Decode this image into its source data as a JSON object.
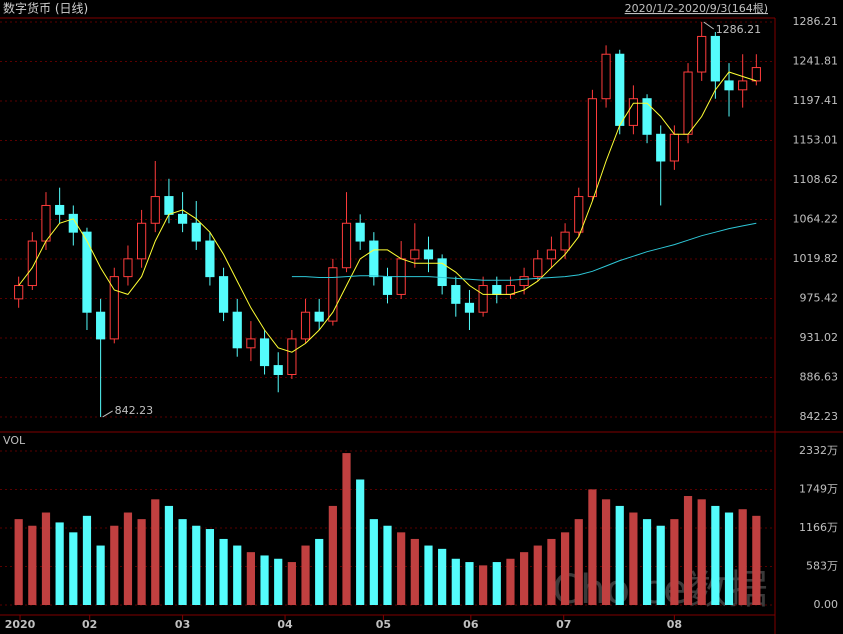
{
  "chart_data": {
    "type": "candlestick",
    "title": "数字货币 (日线)",
    "subtitle": "2020/1/2-2020/9/3(164根)",
    "volume_label": "VOL",
    "watermark": "Choice数据",
    "open": [
      975,
      990,
      1040,
      1080,
      1070,
      1050,
      960,
      930,
      1000,
      1020,
      1060,
      1090,
      1070,
      1060,
      1040,
      1000,
      960,
      920,
      930,
      900,
      890,
      930,
      960,
      950,
      1010,
      1060,
      1040,
      1000,
      980,
      1020,
      1030,
      1020,
      990,
      970,
      960,
      990,
      980,
      990,
      1000,
      1020,
      1030,
      1050,
      1090,
      1200,
      1250,
      1170,
      1200,
      1160,
      1130,
      1160,
      1230,
      1270,
      1220,
      1210,
      1220
    ],
    "high": [
      1000,
      1050,
      1095,
      1100,
      1080,
      1055,
      975,
      1010,
      1035,
      1075,
      1130,
      1110,
      1095,
      1085,
      1050,
      1010,
      975,
      950,
      940,
      915,
      940,
      975,
      975,
      1020,
      1095,
      1070,
      1050,
      1010,
      1040,
      1060,
      1045,
      1025,
      1000,
      985,
      1000,
      1000,
      1000,
      1010,
      1030,
      1045,
      1060,
      1100,
      1210,
      1260,
      1255,
      1215,
      1205,
      1170,
      1170,
      1240,
      1286.21,
      1275,
      1240,
      1250,
      1250
    ],
    "low": [
      965,
      985,
      1030,
      1060,
      1035,
      940,
      842.23,
      925,
      990,
      1010,
      1050,
      1060,
      1050,
      1030,
      990,
      950,
      910,
      905,
      890,
      870,
      885,
      925,
      940,
      945,
      1005,
      1030,
      990,
      970,
      975,
      1010,
      1005,
      980,
      955,
      940,
      955,
      970,
      975,
      980,
      995,
      1010,
      1020,
      1045,
      1085,
      1190,
      1160,
      1160,
      1150,
      1080,
      1120,
      1150,
      1220,
      1200,
      1180,
      1190,
      1215
    ],
    "close": [
      990,
      1040,
      1080,
      1070,
      1050,
      960,
      930,
      1000,
      1020,
      1060,
      1090,
      1070,
      1060,
      1040,
      1000,
      960,
      920,
      930,
      900,
      890,
      930,
      960,
      950,
      1010,
      1060,
      1040,
      1000,
      980,
      1020,
      1030,
      1020,
      990,
      970,
      960,
      990,
      980,
      990,
      1000,
      1020,
      1030,
      1050,
      1090,
      1200,
      1250,
      1170,
      1200,
      1160,
      1130,
      1160,
      1230,
      1270,
      1220,
      1210,
      1220,
      1235
    ],
    "volume": [
      1300,
      1200,
      1400,
      1250,
      1100,
      1350,
      900,
      1200,
      1400,
      1300,
      1600,
      1500,
      1300,
      1200,
      1150,
      1000,
      900,
      800,
      750,
      700,
      650,
      900,
      1000,
      1500,
      2300,
      1900,
      1300,
      1200,
      1100,
      1000,
      900,
      850,
      700,
      650,
      600,
      650,
      700,
      800,
      900,
      1000,
      1100,
      1300,
      1750,
      1600,
      1500,
      1400,
      1300,
      1200,
      1300,
      1650,
      1600,
      1500,
      1400,
      1450,
      1350
    ],
    "up_color": "#ff3c3c",
    "down_color": "#54fcfc",
    "lines": [
      {
        "color": "#ffff33",
        "values": [
          990,
          1010,
          1040,
          1060,
          1065,
          1040,
          1010,
          985,
          980,
          1000,
          1040,
          1070,
          1075,
          1065,
          1050,
          1025,
          995,
          965,
          940,
          920,
          915,
          925,
          940,
          960,
          990,
          1020,
          1030,
          1030,
          1020,
          1015,
          1015,
          1015,
          1005,
          990,
          980,
          980,
          980,
          985,
          995,
          1010,
          1025,
          1045,
          1085,
          1130,
          1170,
          1195,
          1195,
          1180,
          1160,
          1160,
          1180,
          1210,
          1230,
          1225,
          1220
        ]
      },
      {
        "color": "#2ec8d8",
        "values": [
          null,
          null,
          null,
          null,
          null,
          null,
          null,
          null,
          null,
          null,
          null,
          null,
          null,
          null,
          null,
          null,
          null,
          null,
          null,
          null,
          1000,
          1000,
          999,
          999,
          1000,
          1001,
          1001,
          1000,
          1000,
          1000,
          1000,
          999,
          998,
          997,
          996,
          996,
          996,
          997,
          998,
          999,
          1000,
          1002,
          1006,
          1012,
          1018,
          1023,
          1028,
          1032,
          1036,
          1041,
          1046,
          1050,
          1054,
          1057,
          1060
        ]
      }
    ],
    "xlim": [
      -1,
      55
    ],
    "xticks": [
      {
        "value": 0.1,
        "label": "2020"
      },
      {
        "value": 5.2,
        "label": "02"
      },
      {
        "value": 12.0,
        "label": "03"
      },
      {
        "value": 19.5,
        "label": "04"
      },
      {
        "value": 26.7,
        "label": "05"
      },
      {
        "value": 33.1,
        "label": "06"
      },
      {
        "value": 39.9,
        "label": "07"
      },
      {
        "value": 48.0,
        "label": "08"
      }
    ],
    "ylim": [
      827.6,
      1294.1
    ],
    "yticks": [
      1286.21,
      1241.81,
      1197.41,
      1153.01,
      1108.62,
      1064.22,
      1019.82,
      975.42,
      931.02,
      886.63,
      842.23
    ],
    "vol_ylim": [
      0,
      2498
    ],
    "vol_yticks": [
      {
        "value": 2332,
        "label": "2332万"
      },
      {
        "value": 1749,
        "label": "1749万"
      },
      {
        "value": 1166,
        "label": "1166万"
      },
      {
        "value": 583,
        "label": "583万"
      },
      {
        "value": 0,
        "label": "0.00"
      }
    ],
    "grid": true,
    "high_label_index": 50,
    "low_label_index": 6
  }
}
